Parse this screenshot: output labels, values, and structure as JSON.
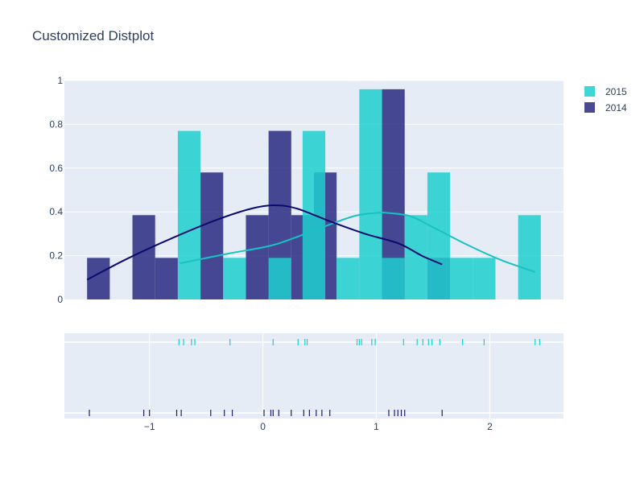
{
  "chart_data": {
    "type": "histogram+kde+rug",
    "title": "Customized Distplot",
    "xlabel": "",
    "ylabel": "",
    "xlim": [
      -1.75,
      2.65
    ],
    "ylim": [
      0,
      1
    ],
    "bin_size": 0.2,
    "grid": true,
    "legend_position": "top-right",
    "x_ticks": [
      -1,
      0,
      1,
      2
    ],
    "x_tick_labels": [
      "−1",
      "0",
      "1",
      "2"
    ],
    "y_ticks": [
      0,
      0.2,
      0.4,
      0.6,
      0.8,
      1
    ],
    "y_tick_labels": [
      "0",
      "0.2",
      "0.4",
      "0.6",
      "0.8",
      "1"
    ],
    "series": [
      {
        "name": "2015",
        "color": "#1fcfcf",
        "opacity": 0.85,
        "hist_bin_starts": [
          -0.75,
          -0.35,
          0.05,
          0.35,
          0.65,
          0.85,
          1.05,
          1.25,
          1.45,
          1.65,
          1.85,
          2.25
        ],
        "hist_densities": [
          0.77,
          0.19,
          0.19,
          0.77,
          0.19,
          0.96,
          0.19,
          0.385,
          0.58,
          0.19,
          0.19,
          0.385
        ],
        "kde_x": [
          -0.73,
          -0.3,
          0.1,
          0.5,
          0.8,
          1.0,
          1.1,
          1.3,
          1.5,
          1.8,
          2.1,
          2.4
        ],
        "kde_y": [
          0.165,
          0.21,
          0.25,
          0.325,
          0.38,
          0.395,
          0.395,
          0.38,
          0.33,
          0.25,
          0.18,
          0.125
        ],
        "rug": [
          -0.74,
          -0.7,
          -0.63,
          -0.6,
          -0.29,
          0.09,
          0.31,
          0.37,
          0.39,
          0.83,
          0.85,
          0.87,
          0.96,
          0.99,
          1.24,
          1.36,
          1.41,
          1.46,
          1.49,
          1.56,
          1.76,
          1.95,
          2.4,
          2.44
        ]
      },
      {
        "name": "2014",
        "color": "#2a2a80",
        "opacity": 0.85,
        "hist_bin_starts": [
          -1.55,
          -1.15,
          -0.95,
          -0.55,
          -0.15,
          0.05,
          0.25,
          0.45,
          1.05,
          1.45
        ],
        "hist_densities": [
          0.19,
          0.385,
          0.19,
          0.58,
          0.385,
          0.77,
          0.385,
          0.58,
          0.96,
          0.19
        ],
        "kde_x": [
          -1.55,
          -1.2,
          -0.8,
          -0.4,
          -0.1,
          0.1,
          0.3,
          0.6,
          0.9,
          1.2,
          1.4,
          1.58
        ],
        "kde_y": [
          0.09,
          0.185,
          0.28,
          0.365,
          0.415,
          0.43,
          0.415,
          0.355,
          0.3,
          0.255,
          0.2,
          0.16
        ],
        "rug": [
          -1.53,
          -1.05,
          -1.0,
          -0.76,
          -0.72,
          -0.46,
          -0.34,
          -0.27,
          0.01,
          0.07,
          0.09,
          0.14,
          0.25,
          0.36,
          0.41,
          0.47,
          0.52,
          0.59,
          1.11,
          1.16,
          1.19,
          1.22,
          1.25,
          1.58
        ]
      }
    ]
  }
}
